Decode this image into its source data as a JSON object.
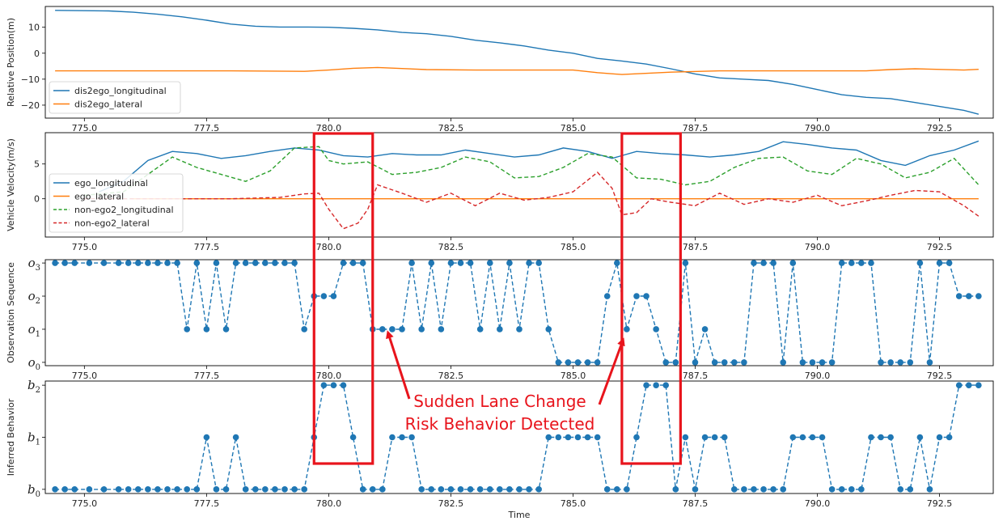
{
  "chart_data": [
    {
      "type": "line",
      "ylabel": "Relative Position(m)",
      "xlim": [
        774.2,
        793.6
      ],
      "ylim": [
        -25,
        18
      ],
      "xticks": [
        "775.0",
        "777.5",
        "780.0",
        "782.5",
        "785.0",
        "787.5",
        "790.0",
        "792.5"
      ],
      "xtick_values": [
        775.0,
        777.5,
        780.0,
        782.5,
        785.0,
        787.5,
        790.0,
        792.5
      ],
      "yticks": [
        "10",
        "0",
        "−10",
        "−20"
      ],
      "ytick_values": [
        10,
        0,
        -10,
        -20
      ],
      "legend_position": "lower-left",
      "series": [
        {
          "name": "dis2ego_longitudinal",
          "color": "#1f77b4",
          "style": "solid",
          "x": [
            774.4,
            775.5,
            776.0,
            776.5,
            777.0,
            777.5,
            778.0,
            778.5,
            779.0,
            779.5,
            780.0,
            780.5,
            781.0,
            781.5,
            782.0,
            782.5,
            783.0,
            783.5,
            784.0,
            784.5,
            785.0,
            785.5,
            786.0,
            786.5,
            787.0,
            787.5,
            788.0,
            788.5,
            789.0,
            789.5,
            790.0,
            790.5,
            791.0,
            791.5,
            792.0,
            792.5,
            793.0,
            793.3
          ],
          "y": [
            16.5,
            16.3,
            15.8,
            15.0,
            14.0,
            12.7,
            11.2,
            10.4,
            10.1,
            10.1,
            10.0,
            9.6,
            9.0,
            8.0,
            7.5,
            6.5,
            5.0,
            4.0,
            2.8,
            1.2,
            0,
            -2.0,
            -3.0,
            -4.2,
            -6.0,
            -8.0,
            -9.5,
            -10.0,
            -10.5,
            -12.0,
            -14.0,
            -16.0,
            -17.0,
            -17.5,
            -19.0,
            -20.5,
            -22.0,
            -23.5
          ]
        },
        {
          "name": "dis2ego_lateral",
          "color": "#ff7f0e",
          "style": "solid",
          "x": [
            774.4,
            776.0,
            778.0,
            779.5,
            780.0,
            780.5,
            781.0,
            782.0,
            783.0,
            784.0,
            785.0,
            785.5,
            786.0,
            787.0,
            788.0,
            789.0,
            790.0,
            791.0,
            791.5,
            792.0,
            793.0,
            793.3
          ],
          "y": [
            -6.8,
            -6.8,
            -6.8,
            -7.0,
            -6.5,
            -5.8,
            -5.5,
            -6.3,
            -6.5,
            -6.5,
            -6.5,
            -7.5,
            -8.2,
            -7.3,
            -6.8,
            -6.8,
            -6.8,
            -6.8,
            -6.3,
            -6.0,
            -6.5,
            -6.2
          ]
        }
      ]
    },
    {
      "type": "line",
      "ylabel": "Vehicle Velocity(m/s)",
      "xlim": [
        774.2,
        793.6
      ],
      "ylim": [
        -5.5,
        9.5
      ],
      "xticks": [
        "775.0",
        "777.5",
        "780.0",
        "782.5",
        "785.0",
        "787.5",
        "790.0",
        "792.5"
      ],
      "xtick_values": [
        775.0,
        777.5,
        780.0,
        782.5,
        785.0,
        787.5,
        790.0,
        792.5
      ],
      "yticks": [
        "5",
        "0"
      ],
      "ytick_values": [
        5,
        0
      ],
      "legend_position": "lower-left",
      "series": [
        {
          "name": "ego_longitudinal",
          "color": "#1f77b4",
          "style": "solid",
          "x": [
            775.3,
            775.8,
            776.3,
            776.8,
            777.3,
            777.8,
            778.3,
            778.8,
            779.3,
            779.8,
            780.3,
            780.8,
            781.3,
            781.8,
            782.3,
            782.8,
            783.3,
            783.8,
            784.3,
            784.8,
            785.3,
            785.8,
            786.3,
            786.8,
            787.3,
            787.8,
            788.3,
            788.8,
            789.3,
            789.8,
            790.3,
            790.8,
            791.3,
            791.8,
            792.3,
            792.8,
            793.3
          ],
          "y": [
            1.0,
            2.5,
            5.5,
            6.8,
            6.5,
            5.8,
            6.2,
            6.8,
            7.3,
            7.0,
            6.2,
            6.0,
            6.5,
            6.3,
            6.3,
            7.0,
            6.5,
            6.0,
            6.3,
            7.3,
            6.8,
            5.8,
            6.8,
            6.5,
            6.3,
            6.0,
            6.3,
            6.8,
            8.2,
            7.8,
            7.3,
            7.0,
            5.5,
            4.8,
            6.2,
            7.0,
            8.3
          ]
        },
        {
          "name": "ego_lateral",
          "color": "#ff7f0e",
          "style": "solid",
          "x": [
            776.0,
            793.3
          ],
          "y": [
            0.0,
            0.0
          ]
        },
        {
          "name": "non-ego2_longitudinal",
          "color": "#2ca02c",
          "style": "dashed",
          "x": [
            775.0,
            775.8,
            776.3,
            776.8,
            777.3,
            777.8,
            778.3,
            778.8,
            779.3,
            779.8,
            780.0,
            780.3,
            780.8,
            781.3,
            781.8,
            782.3,
            782.8,
            783.3,
            783.8,
            784.3,
            784.8,
            785.3,
            785.8,
            786.3,
            786.8,
            787.3,
            787.8,
            788.3,
            788.8,
            789.3,
            789.8,
            790.3,
            790.8,
            791.3,
            791.8,
            792.3,
            792.8,
            793.3
          ],
          "y": [
            0.5,
            1.0,
            3.5,
            6.0,
            4.5,
            3.5,
            2.5,
            4.0,
            7.3,
            7.5,
            5.5,
            5.0,
            5.3,
            3.5,
            3.8,
            4.5,
            6.0,
            5.3,
            3.0,
            3.2,
            4.5,
            6.5,
            6.0,
            3.0,
            2.8,
            2.0,
            2.5,
            4.5,
            5.8,
            6.0,
            4.0,
            3.5,
            5.8,
            5.0,
            3.0,
            3.8,
            5.8,
            2.0
          ]
        },
        {
          "name": "non-ego2_lateral",
          "color": "#d62728",
          "style": "dashed",
          "x": [
            775.0,
            776.0,
            777.0,
            778.0,
            779.0,
            779.5,
            779.8,
            780.0,
            780.3,
            780.6,
            780.8,
            781.0,
            781.5,
            782.0,
            782.5,
            783.0,
            783.5,
            784.0,
            784.5,
            785.0,
            785.5,
            785.8,
            786.0,
            786.3,
            786.6,
            787.0,
            787.5,
            788.0,
            788.5,
            789.0,
            789.5,
            790.0,
            790.5,
            791.0,
            791.5,
            792.0,
            792.5,
            793.0,
            793.3
          ],
          "y": [
            0.0,
            0.0,
            0.0,
            0.0,
            0.2,
            0.7,
            0.8,
            -1.5,
            -4.3,
            -3.5,
            -1.5,
            2.0,
            0.8,
            -0.5,
            0.8,
            -1.0,
            0.8,
            -0.2,
            0.2,
            1.0,
            3.8,
            1.5,
            -2.3,
            -2.0,
            0.0,
            -0.5,
            -1.0,
            0.8,
            -0.8,
            0.0,
            -0.5,
            0.5,
            -1.0,
            -0.3,
            0.5,
            1.2,
            1.0,
            -1.0,
            -2.5
          ]
        }
      ]
    },
    {
      "type": "scatter",
      "ylabel": "Observation Sequence",
      "xlim": [
        774.2,
        793.6
      ],
      "ylim": [
        -0.1,
        3.1
      ],
      "xticks": [
        "775.0",
        "777.5",
        "780.0",
        "782.5",
        "785.0",
        "787.5",
        "790.0",
        "792.5"
      ],
      "xtick_values": [
        775.0,
        777.5,
        780.0,
        782.5,
        785.0,
        787.5,
        790.0,
        792.5
      ],
      "ytick_labels": [
        "o",
        "o",
        "o",
        "o"
      ],
      "ytick_subscripts": [
        "0",
        "1",
        "2",
        "3"
      ],
      "ytick_values": [
        0,
        1,
        2,
        3
      ],
      "series": [
        {
          "name": "",
          "color": "#1f77b4",
          "style": "dashed-markers",
          "x": [
            774.4,
            774.6,
            774.8,
            775.1,
            775.4,
            775.7,
            775.9,
            776.1,
            776.3,
            776.5,
            776.7,
            776.9,
            777.1,
            777.3,
            777.5,
            777.7,
            777.9,
            778.1,
            778.3,
            778.5,
            778.7,
            778.9,
            779.1,
            779.3,
            779.5,
            779.7,
            779.9,
            780.1,
            780.3,
            780.5,
            780.7,
            780.9,
            781.1,
            781.3,
            781.5,
            781.7,
            781.9,
            782.1,
            782.3,
            782.5,
            782.7,
            782.9,
            783.1,
            783.3,
            783.5,
            783.7,
            783.9,
            784.1,
            784.3,
            784.5,
            784.7,
            784.9,
            785.1,
            785.3,
            785.5,
            785.7,
            785.9,
            786.1,
            786.3,
            786.5,
            786.7,
            786.9,
            787.1,
            787.3,
            787.5,
            787.7,
            787.9,
            788.1,
            788.3,
            788.5,
            788.7,
            788.9,
            789.1,
            789.3,
            789.5,
            789.7,
            789.9,
            790.1,
            790.3,
            790.5,
            790.7,
            790.9,
            791.1,
            791.3,
            791.5,
            791.7,
            791.9,
            792.1,
            792.3,
            792.5,
            792.7,
            792.9,
            793.1,
            793.3
          ],
          "y": [
            3,
            3,
            3,
            3,
            3,
            3,
            3,
            3,
            3,
            3,
            3,
            3,
            1,
            3,
            1,
            3,
            1,
            3,
            3,
            3,
            3,
            3,
            3,
            3,
            1,
            2,
            2,
            2,
            3,
            3,
            3,
            1,
            1,
            1,
            1,
            3,
            1,
            3,
            1,
            3,
            3,
            3,
            1,
            3,
            1,
            3,
            1,
            3,
            3,
            1,
            0,
            0,
            0,
            0,
            0,
            2,
            3,
            1,
            2,
            2,
            1,
            0,
            0,
            3,
            0,
            1,
            0,
            0,
            0,
            0,
            3,
            3,
            3,
            0,
            3,
            0,
            0,
            0,
            0,
            3,
            3,
            3,
            3,
            0,
            0,
            0,
            0,
            3,
            0,
            3,
            3,
            2,
            2,
            2
          ]
        }
      ]
    },
    {
      "type": "scatter",
      "ylabel": "Inferred Behavior",
      "xlabel": "Time",
      "xlim": [
        774.2,
        793.6
      ],
      "ylim": [
        -0.08,
        2.08
      ],
      "xticks": [
        "775.0",
        "777.5",
        "780.0",
        "782.5",
        "785.0",
        "787.5",
        "790.0",
        "792.5"
      ],
      "xtick_values": [
        775.0,
        777.5,
        780.0,
        782.5,
        785.0,
        787.5,
        790.0,
        792.5
      ],
      "ytick_labels": [
        "b",
        "b",
        "b"
      ],
      "ytick_subscripts": [
        "0",
        "1",
        "2"
      ],
      "ytick_values": [
        0,
        1,
        2
      ],
      "series": [
        {
          "name": "",
          "color": "#1f77b4",
          "style": "dashed-markers",
          "x": [
            774.4,
            774.6,
            774.8,
            775.1,
            775.4,
            775.7,
            775.9,
            776.1,
            776.3,
            776.5,
            776.7,
            776.9,
            777.1,
            777.3,
            777.5,
            777.7,
            777.9,
            778.1,
            778.3,
            778.5,
            778.7,
            778.9,
            779.1,
            779.3,
            779.5,
            779.7,
            779.9,
            780.1,
            780.3,
            780.5,
            780.7,
            780.9,
            781.1,
            781.3,
            781.5,
            781.7,
            781.9,
            782.1,
            782.3,
            782.5,
            782.7,
            782.9,
            783.1,
            783.3,
            783.5,
            783.7,
            783.9,
            784.1,
            784.3,
            784.5,
            784.7,
            784.9,
            785.1,
            785.3,
            785.5,
            785.7,
            785.9,
            786.1,
            786.3,
            786.5,
            786.7,
            786.9,
            787.1,
            787.3,
            787.5,
            787.7,
            787.9,
            788.1,
            788.3,
            788.5,
            788.7,
            788.9,
            789.1,
            789.3,
            789.5,
            789.7,
            789.9,
            790.1,
            790.3,
            790.5,
            790.7,
            790.9,
            791.1,
            791.3,
            791.5,
            791.7,
            791.9,
            792.1,
            792.3,
            792.5,
            792.7,
            792.9,
            793.1,
            793.3
          ],
          "y": [
            0,
            0,
            0,
            0,
            0,
            0,
            0,
            0,
            0,
            0,
            0,
            0,
            0,
            0,
            1,
            0,
            0,
            1,
            0,
            0,
            0,
            0,
            0,
            0,
            0,
            1,
            2,
            2,
            2,
            1,
            0,
            0,
            0,
            1,
            1,
            1,
            0,
            0,
            0,
            0,
            0,
            0,
            0,
            0,
            0,
            0,
            0,
            0,
            0,
            1,
            1,
            1,
            1,
            1,
            1,
            0,
            0,
            0,
            1,
            2,
            2,
            2,
            0,
            1,
            0,
            1,
            1,
            1,
            0,
            0,
            0,
            0,
            0,
            0,
            1,
            1,
            1,
            1,
            0,
            0,
            0,
            0,
            1,
            1,
            1,
            0,
            0,
            1,
            0,
            1,
            1,
            2,
            2,
            2
          ]
        }
      ]
    }
  ],
  "annotation": {
    "line1": "Sudden Lane Change",
    "line2": "Risk Behavior Detected",
    "color": "#e8141c",
    "boxes_x_ranges": [
      [
        779.7,
        780.9
      ],
      [
        786.0,
        787.2
      ]
    ]
  }
}
